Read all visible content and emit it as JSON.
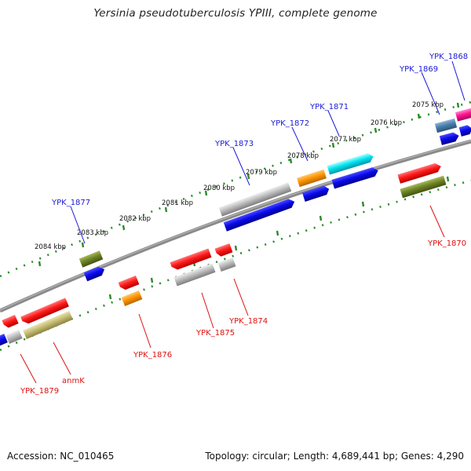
{
  "title": "Yersinia pseudotuberculosis YPIII, complete genome",
  "footer": {
    "accession": "Accession: NC_010465",
    "stats": "Topology: circular; Length: 4,689,441 bp; Genes: 4,290"
  },
  "ruler": [
    {
      "label": "2075 kbp",
      "kbp": 2075
    },
    {
      "label": "2076 kbp",
      "kbp": 2076
    },
    {
      "label": "2077 kbp",
      "kbp": 2077
    },
    {
      "label": "2078 kbp",
      "kbp": 2078
    },
    {
      "label": "2079 kbp",
      "kbp": 2079
    },
    {
      "label": "2080 kbp",
      "kbp": 2080
    },
    {
      "label": "2081 kbp",
      "kbp": 2081
    },
    {
      "label": "2082 kbp",
      "kbp": 2082
    },
    {
      "label": "2083 kbp",
      "kbp": 2083
    },
    {
      "label": "2084 kbp",
      "kbp": 2084
    }
  ],
  "genes": [
    {
      "name": "YPK_1868",
      "strand": "forward",
      "color": "#1a1ad6"
    },
    {
      "name": "YPK_1869",
      "strand": "forward",
      "color": "#1a1ad6"
    },
    {
      "name": "YPK_1871",
      "strand": "forward",
      "color": "#1a1ad6"
    },
    {
      "name": "YPK_1872",
      "strand": "forward",
      "color": "#1a1ad6"
    },
    {
      "name": "YPK_1873",
      "strand": "forward",
      "color": "#1a1ad6"
    },
    {
      "name": "YPK_1877",
      "strand": "forward",
      "color": "#1a1ad6"
    },
    {
      "name": "YPK_1870",
      "strand": "reverse",
      "color": "#dd1111"
    },
    {
      "name": "YPK_1874",
      "strand": "reverse",
      "color": "#dd1111"
    },
    {
      "name": "YPK_1875",
      "strand": "reverse",
      "color": "#dd1111"
    },
    {
      "name": "YPK_1876",
      "strand": "reverse",
      "color": "#dd1111"
    },
    {
      "name": "YPK_1879",
      "strand": "reverse",
      "color": "#dd1111"
    },
    {
      "name": "anmK",
      "strand": "reverse",
      "color": "#dd1111"
    }
  ]
}
